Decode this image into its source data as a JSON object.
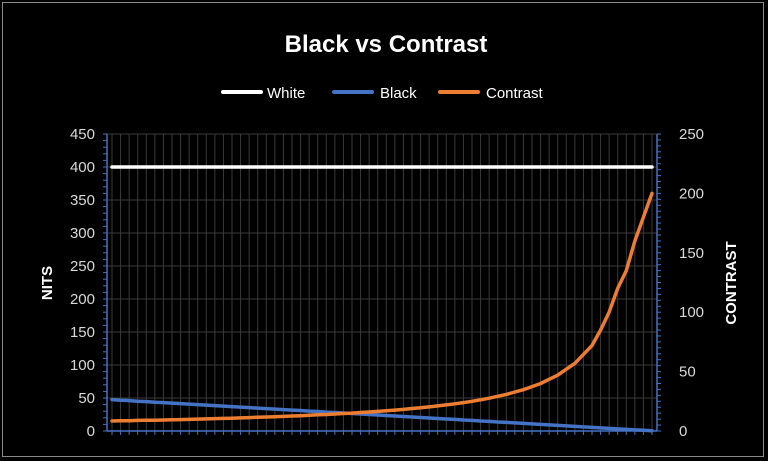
{
  "chart_data": {
    "type": "line",
    "title": "Black vs Contrast",
    "legend_position": "top",
    "grid": true,
    "y_left": {
      "label": "NITS",
      "range": [
        0,
        450
      ],
      "ticks": [
        0,
        50,
        100,
        150,
        200,
        250,
        300,
        350,
        400,
        450
      ]
    },
    "y_right": {
      "label": "CONTRAST",
      "range": [
        0,
        250
      ],
      "ticks": [
        0,
        50,
        100,
        150,
        200,
        250
      ]
    },
    "point_count": 64,
    "series": [
      {
        "name": "White",
        "axis": "left",
        "color": "#ffffff",
        "values": [
          400,
          400,
          400,
          400,
          400,
          400,
          400,
          400,
          400,
          400,
          400,
          400,
          400,
          400,
          400,
          400,
          400,
          400,
          400,
          400,
          400,
          400,
          400,
          400,
          400,
          400,
          400,
          400,
          400,
          400,
          400,
          400,
          400,
          400,
          400,
          400,
          400,
          400,
          400,
          400,
          400,
          400,
          400,
          400,
          400,
          400,
          400,
          400,
          400,
          400,
          400,
          400,
          400,
          400,
          400,
          400,
          400,
          400,
          400,
          400,
          400,
          400,
          400,
          400
        ]
      },
      {
        "name": "Black",
        "axis": "left",
        "color": "#4472c4",
        "values": [
          47.5,
          46.7,
          46,
          45.2,
          44.5,
          43.7,
          43,
          42.2,
          41.5,
          40.7,
          40,
          39.2,
          38.5,
          37.7,
          37,
          36.2,
          35.5,
          34.7,
          34,
          33.2,
          32.5,
          31.7,
          31,
          30.2,
          29.5,
          28.7,
          28,
          27.2,
          26.5,
          25.7,
          25,
          24.2,
          23.5,
          22.7,
          22,
          21.2,
          20.5,
          19.7,
          19,
          18.2,
          17.5,
          16.7,
          16,
          15.2,
          14.5,
          13.7,
          13,
          12.2,
          11.5,
          10.7,
          10,
          9.2,
          8.5,
          7.7,
          7,
          6.2,
          5.5,
          4.7,
          4,
          3.2,
          2.5,
          1.7,
          1,
          0.5
        ]
      },
      {
        "name": "Contrast",
        "axis": "right",
        "color": "#ed7d31",
        "values": [
          8.4,
          8.6,
          8.7,
          8.9,
          9,
          9.1,
          9.3,
          9.5,
          9.6,
          9.8,
          10,
          10.2,
          10.4,
          10.6,
          10.8,
          11,
          11.3,
          11.5,
          11.8,
          12,
          12.3,
          12.6,
          12.9,
          13.2,
          13.6,
          13.9,
          14.3,
          14.7,
          15.1,
          15.6,
          16,
          16.5,
          17,
          17.6,
          18.2,
          18.9,
          19.5,
          20.3,
          21.1,
          22,
          22.9,
          23.9,
          25,
          26.3,
          27.6,
          29.2,
          30.8,
          32.8,
          34.8,
          37.4,
          40,
          43.5,
          47,
          52,
          57,
          64.5,
          72,
          85,
          100,
          120,
          135,
          160,
          180,
          200
        ]
      }
    ]
  }
}
